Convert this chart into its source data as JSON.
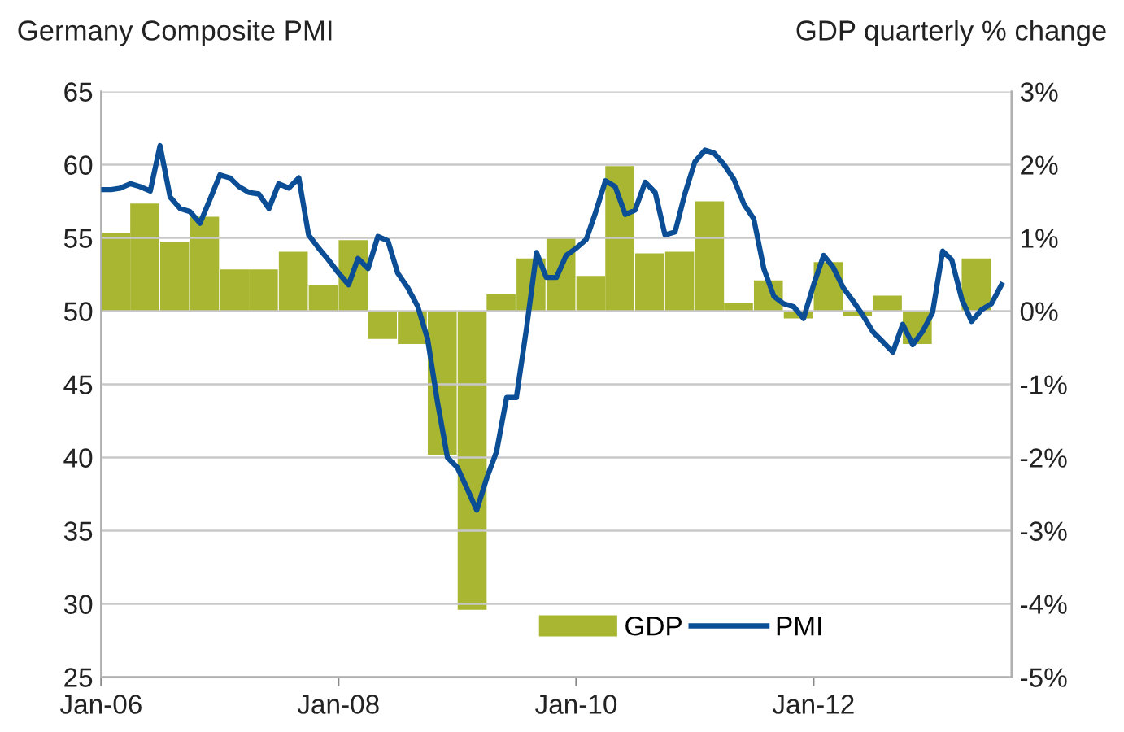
{
  "chart_data": {
    "type": "bar",
    "ylabel": "Germany Composite PMI",
    "y2label": "GDP quarterly % change",
    "xlim": [
      "2006-01",
      "2013-09"
    ],
    "xticks": [
      {
        "value": "2006-01",
        "label": "Jan-06"
      },
      {
        "value": "2008-01",
        "label": "Jan-08"
      },
      {
        "value": "2010-01",
        "label": "Jan-10"
      },
      {
        "value": "2012-01",
        "label": "Jan-12"
      }
    ],
    "ylim": [
      25,
      65
    ],
    "yticks": [
      25,
      30,
      35,
      40,
      45,
      50,
      55,
      60,
      65
    ],
    "y2lim": [
      -5,
      3
    ],
    "y2ticks": [
      {
        "value": -5,
        "label": "-5%"
      },
      {
        "value": -4,
        "label": "-4%"
      },
      {
        "value": -3,
        "label": "-3%"
      },
      {
        "value": -2,
        "label": "-2%"
      },
      {
        "value": -1,
        "label": "-1%"
      },
      {
        "value": 0,
        "label": "0%"
      },
      {
        "value": 1,
        "label": "1%"
      },
      {
        "value": 2,
        "label": "2%"
      },
      {
        "value": 3,
        "label": "3%"
      }
    ],
    "grid": "y",
    "legend": "bottom right",
    "series": [
      {
        "name": "GDP",
        "axis": "y2",
        "color": "#a8b631",
        "x": [
          "2006-02-15",
          "2006-05-15",
          "2006-08-15",
          "2006-11-15",
          "2007-02-15",
          "2007-05-15",
          "2007-08-15",
          "2007-11-15",
          "2008-02-15",
          "2008-05-15",
          "2008-08-15",
          "2008-11-15",
          "2009-02-15",
          "2009-05-15",
          "2009-08-15",
          "2009-11-15",
          "2010-02-15",
          "2010-05-15",
          "2010-08-15",
          "2010-11-15",
          "2011-02-15",
          "2011-05-15",
          "2011-08-15",
          "2011-11-15",
          "2012-02-15",
          "2012-05-15",
          "2012-08-15",
          "2012-11-15",
          "2013-02-15",
          "2013-05-15"
        ],
        "values": [
          1.07,
          1.47,
          0.95,
          1.29,
          0.57,
          0.57,
          0.81,
          0.35,
          0.97,
          -0.38,
          -0.45,
          -1.96,
          -4.08,
          0.23,
          0.72,
          1.0,
          0.48,
          1.98,
          0.79,
          0.81,
          1.5,
          0.11,
          0.42,
          -0.1,
          0.67,
          -0.07,
          0.21,
          -0.45,
          0.0,
          0.72
        ]
      },
      {
        "name": "PMI",
        "type": "line",
        "color": "#0b4e96",
        "x": [
          "2006-01",
          "2006-02",
          "2006-03",
          "2006-04",
          "2006-05",
          "2006-06",
          "2006-07",
          "2006-08",
          "2006-09",
          "2006-10",
          "2006-11",
          "2006-12",
          "2007-01",
          "2007-02",
          "2007-03",
          "2007-04",
          "2007-05",
          "2007-06",
          "2007-07",
          "2007-08",
          "2007-09",
          "2007-10",
          "2007-11",
          "2007-12",
          "2008-01",
          "2008-02",
          "2008-03",
          "2008-04",
          "2008-05",
          "2008-06",
          "2008-07",
          "2008-08",
          "2008-09",
          "2008-10",
          "2008-11",
          "2008-12",
          "2009-01",
          "2009-02",
          "2009-03",
          "2009-04",
          "2009-05",
          "2009-06",
          "2009-07",
          "2009-08",
          "2009-09",
          "2009-10",
          "2009-11",
          "2009-12",
          "2010-01",
          "2010-02",
          "2010-03",
          "2010-04",
          "2010-05",
          "2010-06",
          "2010-07",
          "2010-08",
          "2010-09",
          "2010-10",
          "2010-11",
          "2010-12",
          "2011-01",
          "2011-02",
          "2011-03",
          "2011-04",
          "2011-05",
          "2011-06",
          "2011-07",
          "2011-08",
          "2011-09",
          "2011-10",
          "2011-11",
          "2011-12",
          "2012-01",
          "2012-02",
          "2012-03",
          "2012-04",
          "2012-05",
          "2012-06",
          "2012-07",
          "2012-08",
          "2012-09",
          "2012-10",
          "2012-11",
          "2012-12",
          "2013-01",
          "2013-02",
          "2013-03",
          "2013-04",
          "2013-05",
          "2013-06",
          "2013-07",
          "2013-08"
        ],
        "values": [
          58.3,
          58.3,
          58.4,
          58.7,
          58.5,
          58.2,
          61.3,
          57.8,
          57.0,
          56.8,
          56.0,
          57.6,
          59.3,
          59.1,
          58.5,
          58.1,
          58.0,
          57.0,
          58.7,
          58.4,
          59.1,
          55.2,
          54.3,
          53.5,
          52.6,
          51.8,
          53.6,
          52.9,
          55.1,
          54.8,
          52.6,
          51.6,
          50.3,
          48.1,
          43.7,
          40.0,
          39.3,
          37.8,
          36.4,
          38.6,
          40.4,
          44.1,
          44.1,
          48.8,
          54.0,
          52.3,
          52.3,
          53.8,
          54.3,
          54.9,
          56.7,
          58.9,
          58.5,
          56.6,
          56.9,
          58.8,
          58.1,
          55.2,
          55.4,
          58.0,
          60.2,
          61.0,
          60.8,
          60.0,
          59.0,
          57.3,
          56.3,
          52.9,
          51.0,
          50.5,
          50.3,
          49.5,
          51.8,
          53.8,
          53.0,
          51.6,
          50.7,
          49.7,
          48.6,
          47.9,
          47.2,
          49.1,
          47.7,
          48.6,
          49.9,
          54.1,
          53.5,
          50.8,
          49.3,
          50.1,
          50.5,
          51.8
        ]
      }
    ]
  }
}
